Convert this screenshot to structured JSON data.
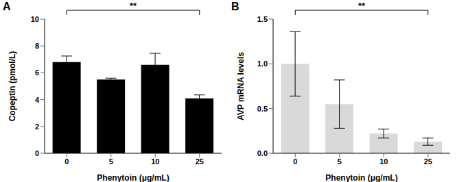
{
  "chart_data": [
    {
      "type": "bar",
      "title": "A",
      "categories": [
        "0",
        "5",
        "10",
        "25"
      ],
      "values": [
        6.8,
        5.5,
        6.6,
        4.1
      ],
      "errors": [
        0.45,
        0.1,
        0.85,
        0.25
      ],
      "color": "#000000",
      "xlabel": "Phenytoin (μg/mL)",
      "ylabel": "Copeptin (pmol/L)",
      "ylim": [
        0,
        10
      ],
      "yticks": [
        0,
        2,
        4,
        6,
        8,
        10
      ],
      "annotations": [
        {
          "text": "**",
          "from": "0",
          "to": "25"
        }
      ]
    },
    {
      "type": "bar",
      "title": "B",
      "categories": [
        "0",
        "5",
        "10",
        "25"
      ],
      "values": [
        1.0,
        0.55,
        0.22,
        0.13
      ],
      "errors": [
        0.36,
        0.27,
        0.05,
        0.04
      ],
      "color": "#d9d9d9",
      "xlabel": "Phenytoin (μg/mL)",
      "ylabel": "AVP mRNA levels",
      "ylim": [
        0,
        1.5
      ],
      "yticks": [
        {
          "value": 0,
          "label": "0.0"
        },
        0.5,
        {
          "value": 1.0,
          "label": "1.0"
        },
        1.5
      ],
      "annotations": [
        {
          "text": "**",
          "from": "0",
          "to": "25"
        }
      ]
    }
  ]
}
